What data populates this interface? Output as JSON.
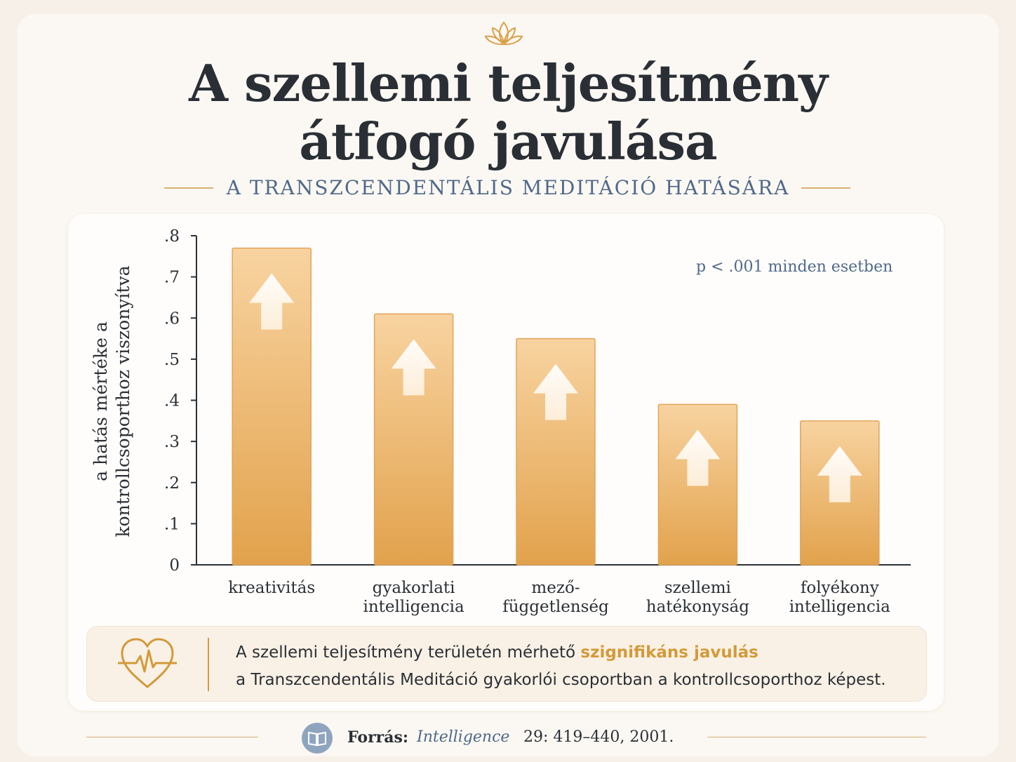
{
  "header": {
    "title_line1": "A szellemi teljesítmény",
    "title_line2": "átfogó javulása",
    "subtitle": "A TRANSZCENDENTÁLIS MEDITÁCIÓ HATÁSÁRA"
  },
  "note": "p < .001 minden esetben",
  "info": {
    "text_before": "A szellemi teljesítmény területén mérhető ",
    "highlight": "szignifikáns javulás",
    "line2": "a Transzcendentális Meditáció gyakorlói csoportban a kontrollcsoporthoz képest."
  },
  "source": {
    "label": "Forrás:",
    "journal": "Intelligence",
    "reference": "29: 419–440, 2001."
  },
  "icons": {
    "top": "lotus-icon",
    "info": "heart-pulse-icon",
    "source": "book-icon",
    "bars": "up-arrow-icon"
  },
  "colors": {
    "accent": "#e0a24a",
    "title": "#2a2f35",
    "subtitle": "#50698a"
  },
  "chart_data": {
    "type": "bar",
    "categories": [
      "kreativitás",
      "gyakorlati intelligencia",
      "mező-függetlenség",
      "szellemi hatékonyság",
      "folyékony intelligencia"
    ],
    "category_lines": [
      [
        "kreativitás"
      ],
      [
        "gyakorlati",
        "intelligencia"
      ],
      [
        "mező-",
        "függetlenség"
      ],
      [
        "szellemi",
        "hatékonyság"
      ],
      [
        "folyékony",
        "intelligencia"
      ]
    ],
    "values": [
      0.77,
      0.61,
      0.55,
      0.39,
      0.35
    ],
    "ylabel_lines": [
      "a hatás mértéke a",
      "kontrollcsoporthoz viszonyítva"
    ],
    "yticks": [
      0,
      0.1,
      0.2,
      0.3,
      0.4,
      0.5,
      0.6,
      0.7,
      0.8
    ],
    "ytick_labels": [
      "0",
      ".1",
      ".2",
      ".3",
      ".4",
      ".5",
      ".6",
      ".7",
      ".8"
    ],
    "ylim": [
      0,
      0.8
    ],
    "grid": false,
    "legend": "none"
  }
}
